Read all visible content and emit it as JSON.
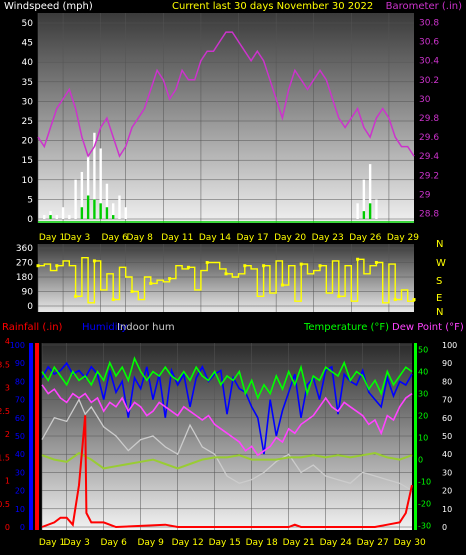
{
  "header": {
    "left": "Windspeed (mph)",
    "center": "Current last 30 days November 30 2022",
    "right": "Barometer (.in)"
  },
  "colors": {
    "background": "#000000",
    "wind": "#ffffff",
    "gust": "#00cc00",
    "barometer": "#cc33cc",
    "direction": "#ffff00",
    "rainfall": "#ff0000",
    "humidity": "#0000ff",
    "indoor_hum": "#cccccc",
    "temperature": "#00ff00",
    "dew_point": "#ff44ff",
    "indoor_temp": "#99cc33",
    "grid": "#555555",
    "header_yellow": "#ffff00"
  },
  "chart_data": [
    {
      "type": "line",
      "name": "wind-barometer",
      "title": "Current last 30 days November 30 2022",
      "ylabel_left": "Windspeed (mph)",
      "ylabel_right": "Barometer (.in)",
      "y_left_ticks": [
        "0",
        "5",
        "10",
        "15",
        "20",
        "25",
        "30",
        "35",
        "40",
        "45",
        "50"
      ],
      "y_left_range": [
        0,
        50
      ],
      "y_right_ticks": [
        "28.8",
        "29",
        "29.2",
        "29.4",
        "29.6",
        "29.8",
        "30",
        "30.2",
        "30.4",
        "30.6",
        "30.8"
      ],
      "y_right_range": [
        28.7,
        30.9
      ],
      "x_ticks": [
        "Day 1",
        "Day 3",
        "Day 6",
        "Day 8",
        "Day 11",
        "Day 14",
        "Day 17",
        "Day 20",
        "Day 23",
        "Day 26",
        "Day 29"
      ],
      "x_range": [
        0,
        30
      ],
      "barometer": {
        "x": [
          0,
          0.5,
          1,
          1.5,
          2,
          2.5,
          3,
          3.5,
          4,
          4.5,
          5,
          5.5,
          6,
          6.5,
          7,
          7.5,
          8,
          8.5,
          9,
          9.5,
          10,
          10.5,
          11,
          11.5,
          12,
          12.5,
          13,
          13.5,
          14,
          14.5,
          15,
          15.5,
          16,
          16.5,
          17,
          17.5,
          18,
          18.5,
          19,
          19.5,
          20,
          20.5,
          21,
          21.5,
          22,
          22.5,
          23,
          23.5,
          24,
          24.5,
          25,
          25.5,
          26,
          26.5,
          27,
          27.5,
          28,
          28.5,
          29,
          29.5,
          30
        ],
        "y": [
          29.6,
          29.5,
          29.7,
          29.9,
          30.0,
          30.1,
          29.9,
          29.6,
          29.4,
          29.5,
          29.7,
          29.8,
          29.6,
          29.4,
          29.5,
          29.7,
          29.8,
          29.9,
          30.1,
          30.3,
          30.2,
          30.0,
          30.1,
          30.3,
          30.2,
          30.2,
          30.4,
          30.5,
          30.5,
          30.6,
          30.7,
          30.7,
          30.6,
          30.5,
          30.4,
          30.5,
          30.4,
          30.2,
          30.0,
          29.8,
          30.1,
          30.3,
          30.2,
          30.1,
          30.2,
          30.3,
          30.2,
          30.0,
          29.8,
          29.7,
          29.8,
          29.9,
          29.7,
          29.6,
          29.8,
          29.9,
          29.8,
          29.6,
          29.5,
          29.5,
          29.4
        ]
      },
      "wind": {
        "x": [
          0.5,
          1,
          1.5,
          2,
          2.5,
          3,
          3.5,
          4,
          4.5,
          5,
          5.5,
          6,
          6.5,
          7,
          25.5,
          26,
          26.5,
          27
        ],
        "y": [
          1,
          2,
          1,
          3,
          1,
          10,
          12,
          16,
          22,
          18,
          9,
          4,
          6,
          3,
          4,
          10,
          14,
          5
        ]
      },
      "gust": {
        "x": [
          1,
          3.5,
          4,
          4.5,
          5,
          5.5,
          6,
          26,
          26.5
        ],
        "y": [
          1,
          3,
          6,
          5,
          4,
          3,
          1,
          2,
          4
        ]
      }
    },
    {
      "type": "scatter",
      "name": "wind-direction",
      "y_left_ticks": [
        "0",
        "90",
        "180",
        "270",
        "360"
      ],
      "y_left_range": [
        0,
        360
      ],
      "y_right_ticks": [
        "N",
        "W",
        "S",
        "E",
        "N"
      ],
      "x_ticks": [
        "Day 1",
        "Day 3",
        "Day 6",
        "Day 8",
        "Day 11",
        "Day 14",
        "Day 17",
        "Day 20",
        "Day 23",
        "Day 26",
        "Day 29"
      ],
      "x_range": [
        0,
        30
      ],
      "direction": {
        "x": [
          0,
          0.5,
          1,
          1.5,
          2,
          2.5,
          3,
          3.5,
          4,
          4.5,
          5,
          5.5,
          6,
          6.5,
          7,
          7.5,
          8,
          8.5,
          9,
          9.5,
          10,
          10.5,
          11,
          11.5,
          12,
          12.5,
          13,
          13.5,
          14,
          14.5,
          15,
          15.5,
          16,
          16.5,
          17,
          17.5,
          18,
          18.5,
          19,
          19.5,
          20,
          20.5,
          21,
          21.5,
          22,
          22.5,
          23,
          23.5,
          24,
          24.5,
          25,
          25.5,
          26,
          26.5,
          27,
          27.5,
          28,
          28.5,
          29,
          29.5,
          30
        ],
        "y": [
          250,
          260,
          220,
          250,
          280,
          250,
          60,
          300,
          20,
          280,
          100,
          200,
          40,
          240,
          180,
          90,
          40,
          180,
          140,
          160,
          150,
          170,
          250,
          230,
          240,
          100,
          220,
          270,
          270,
          230,
          200,
          180,
          200,
          250,
          230,
          60,
          250,
          80,
          280,
          130,
          250,
          30,
          260,
          200,
          220,
          250,
          80,
          280,
          60,
          250,
          30,
          290,
          200,
          250,
          270,
          20,
          260,
          40,
          100,
          30,
          40
        ]
      }
    },
    {
      "type": "line",
      "name": "rain-humidity-temperature",
      "legend": [
        "Rainfall (.in)",
        "Humidity",
        "Indoor hum",
        "Temperature (°F)",
        "Dew Point (°F)"
      ],
      "y_rain_ticks": [
        "0",
        "0.5",
        "1",
        "1.5",
        "2",
        "2.5",
        "3",
        "3.5",
        "4"
      ],
      "y_rain_range": [
        0,
        4
      ],
      "y_hum_ticks": [
        "0",
        "10",
        "20",
        "30",
        "40",
        "50",
        "60",
        "70",
        "80",
        "90",
        "100"
      ],
      "y_hum_range": [
        0,
        100
      ],
      "y_temp_ticks": [
        "-30",
        "-20",
        "-10",
        "0",
        "10",
        "20",
        "30",
        "40",
        "50"
      ],
      "y_temp_range": [
        -32,
        53
      ],
      "y_right2_ticks": [
        "0",
        "10",
        "20",
        "30",
        "40",
        "50",
        "60",
        "70",
        "80",
        "90",
        "100"
      ],
      "x_ticks": [
        "Day 1",
        "Day 3",
        "Day 6",
        "Day 9",
        "Day 12",
        "Day 15",
        "Day 18",
        "Day 21",
        "Day 24",
        "Day 27",
        "Day 30"
      ],
      "x_range": [
        0,
        30
      ],
      "rainfall": {
        "x": [
          0,
          1,
          1.5,
          2,
          2.5,
          3,
          3.5,
          3.6,
          4,
          5,
          6,
          10,
          11,
          20,
          20.5,
          21,
          21.5,
          22,
          27,
          28,
          29,
          29.5,
          30
        ],
        "y": [
          0,
          0.1,
          0.2,
          0.2,
          0.05,
          0.9,
          2.4,
          0.3,
          0.1,
          0.1,
          0,
          0.05,
          0,
          0,
          0.05,
          0,
          0,
          0,
          0,
          0.05,
          0.1,
          0.3,
          0.9
        ]
      },
      "temperature": {
        "x": [
          0,
          0.5,
          1,
          1.5,
          2,
          2.5,
          3,
          3.5,
          4,
          4.5,
          5,
          5.5,
          6,
          6.5,
          7,
          7.5,
          8,
          8.5,
          9,
          9.5,
          10,
          10.5,
          11,
          11.5,
          12,
          12.5,
          13,
          13.5,
          14,
          14.5,
          15,
          15.5,
          16,
          16.5,
          17,
          17.5,
          18,
          18.5,
          19,
          19.5,
          20,
          20.5,
          21,
          21.5,
          22,
          22.5,
          23,
          23.5,
          24,
          24.5,
          25,
          25.5,
          26,
          26.5,
          27,
          27.5,
          28,
          28.5,
          29,
          29.5,
          30
        ],
        "y": [
          40,
          36,
          42,
          38,
          34,
          40,
          36,
          38,
          34,
          40,
          36,
          44,
          38,
          42,
          36,
          46,
          40,
          36,
          40,
          38,
          42,
          38,
          36,
          40,
          36,
          42,
          38,
          36,
          40,
          34,
          38,
          36,
          40,
          30,
          36,
          28,
          34,
          30,
          38,
          32,
          40,
          34,
          42,
          30,
          38,
          36,
          42,
          40,
          38,
          44,
          36,
          40,
          38,
          32,
          36,
          30,
          40,
          34,
          38,
          42,
          40
        ]
      },
      "dew_point": {
        "x": [
          0,
          0.5,
          1,
          1.5,
          2,
          2.5,
          3,
          3.5,
          4,
          4.5,
          5,
          5.5,
          6,
          6.5,
          7,
          7.5,
          8,
          8.5,
          9,
          9.5,
          10,
          10.5,
          11,
          11.5,
          12,
          12.5,
          13,
          13.5,
          14,
          14.5,
          15,
          15.5,
          16,
          16.5,
          17,
          17.5,
          18,
          18.5,
          19,
          19.5,
          20,
          20.5,
          21,
          21.5,
          22,
          22.5,
          23,
          23.5,
          24,
          24.5,
          25,
          25.5,
          26,
          26.5,
          27,
          27.5,
          28,
          28.5,
          29,
          29.5,
          30
        ],
        "y": [
          34,
          30,
          32,
          28,
          26,
          30,
          28,
          30,
          26,
          28,
          22,
          26,
          24,
          28,
          22,
          26,
          24,
          20,
          22,
          26,
          24,
          22,
          20,
          24,
          22,
          20,
          18,
          20,
          16,
          14,
          12,
          10,
          8,
          4,
          6,
          2,
          4,
          6,
          10,
          8,
          14,
          12,
          16,
          18,
          20,
          24,
          28,
          24,
          22,
          26,
          24,
          22,
          20,
          16,
          18,
          12,
          20,
          18,
          24,
          28,
          30
        ]
      },
      "humidity": {
        "x": [
          0,
          0.5,
          1,
          1.5,
          2,
          2.5,
          3,
          3.5,
          4,
          4.5,
          5,
          5.5,
          6,
          6.5,
          7,
          7.5,
          8,
          8.5,
          9,
          9.5,
          10,
          10.5,
          11,
          11.5,
          12,
          12.5,
          13,
          13.5,
          14,
          14.5,
          15,
          15.5,
          16,
          16.5,
          17,
          17.5,
          18,
          18.5,
          19,
          19.5,
          20,
          20.5,
          21,
          21.5,
          22,
          22.5,
          23,
          23.5,
          24,
          24.5,
          25,
          25.5,
          26,
          26.5,
          27,
          27.5,
          28,
          28.5,
          29,
          29.5,
          30
        ],
        "y": [
          82,
          88,
          84,
          86,
          90,
          84,
          86,
          82,
          88,
          84,
          70,
          86,
          74,
          80,
          60,
          82,
          76,
          88,
          70,
          84,
          60,
          86,
          78,
          84,
          66,
          82,
          88,
          80,
          84,
          86,
          62,
          82,
          76,
          74,
          66,
          60,
          40,
          70,
          50,
          64,
          74,
          84,
          60,
          78,
          82,
          70,
          86,
          88,
          62,
          84,
          80,
          78,
          86,
          74,
          70,
          66,
          82,
          72,
          80,
          78,
          84
        ]
      },
      "indoor_hum": {
        "x": [
          0,
          1,
          2,
          3,
          3.5,
          4,
          5,
          6,
          7,
          8,
          9,
          10,
          11,
          12,
          13,
          14,
          15,
          16,
          17,
          18,
          19,
          20,
          21,
          22,
          23,
          24,
          25,
          26,
          27,
          28,
          29,
          30
        ],
        "y": [
          48,
          60,
          58,
          70,
          62,
          66,
          55,
          50,
          42,
          48,
          50,
          44,
          40,
          56,
          44,
          40,
          28,
          24,
          26,
          30,
          36,
          40,
          30,
          34,
          28,
          26,
          24,
          30,
          28,
          26,
          24,
          20
        ]
      },
      "indoor_temp": {
        "x": [
          0,
          1,
          2,
          3,
          4,
          5,
          6,
          7,
          8,
          9,
          10,
          11,
          12,
          13,
          14,
          15,
          16,
          17,
          18,
          19,
          20,
          21,
          22,
          23,
          24,
          25,
          26,
          27,
          28,
          29,
          30
        ],
        "y": [
          2,
          0,
          -1,
          3,
          0,
          -4,
          -3,
          -2,
          -1,
          0,
          -2,
          -4,
          -2,
          0,
          1,
          1,
          2,
          0,
          0,
          0,
          1,
          1,
          2,
          1,
          2,
          1,
          2,
          3,
          1,
          0,
          2
        ]
      }
    }
  ]
}
